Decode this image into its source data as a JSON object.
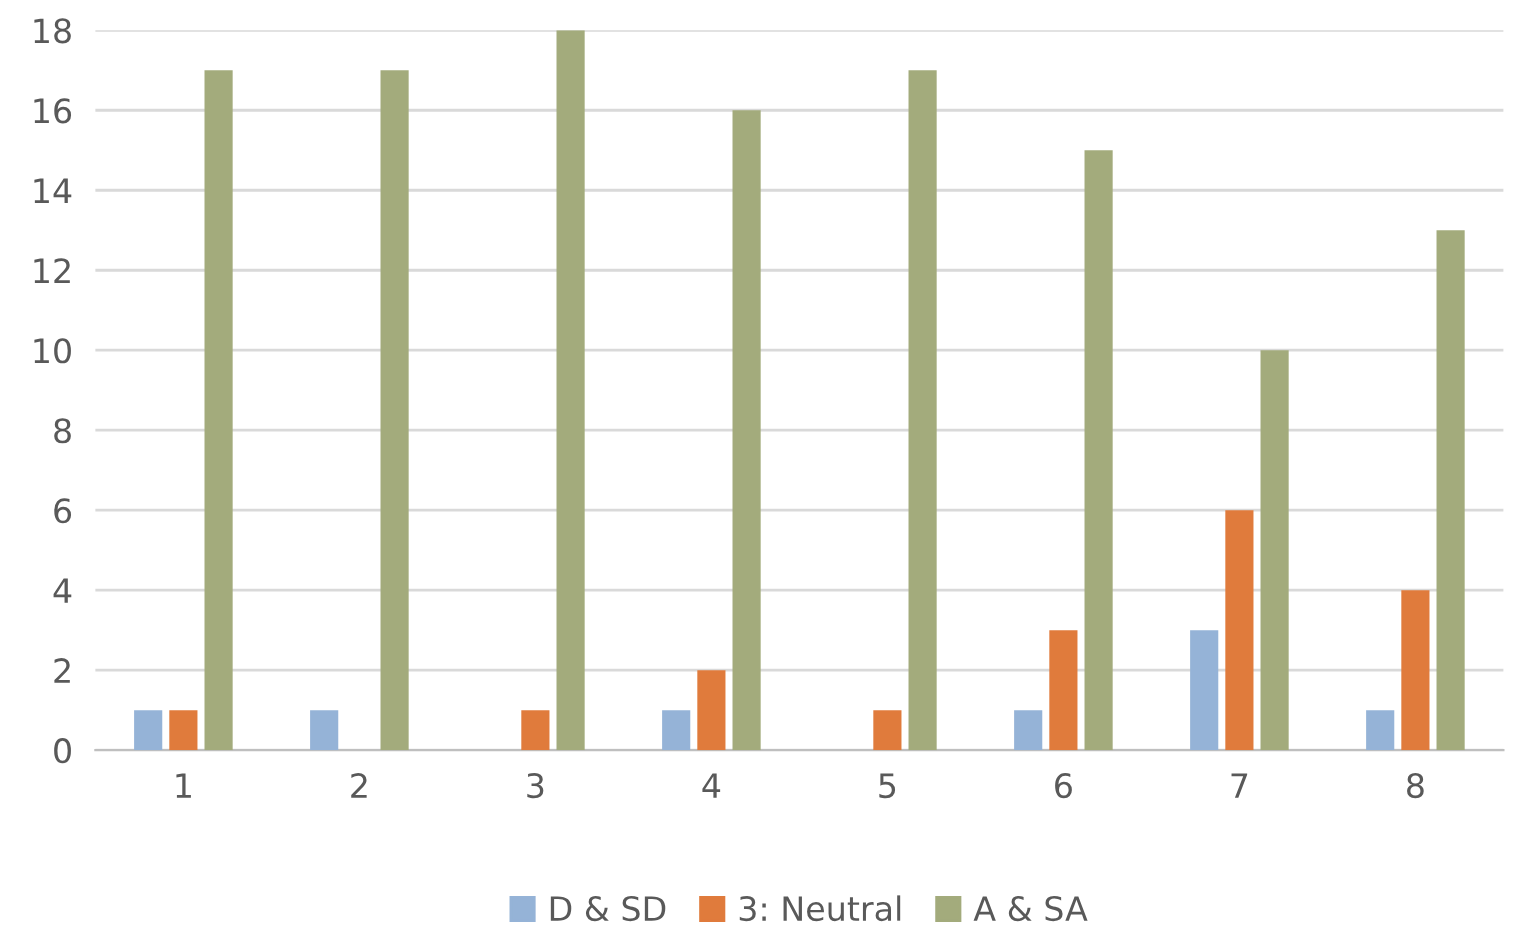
{
  "chart_data": {
    "type": "bar",
    "categories": [
      "1",
      "2",
      "3",
      "4",
      "5",
      "6",
      "7",
      "8"
    ],
    "series": [
      {
        "name": "D & SD",
        "color": "#95b3d7",
        "values": [
          1,
          1,
          0,
          1,
          0,
          1,
          3,
          1
        ]
      },
      {
        "name": "3: Neutral",
        "color": "#e07b3c",
        "values": [
          1,
          0,
          1,
          2,
          1,
          3,
          6,
          4
        ]
      },
      {
        "name": "A & SA",
        "color": "#a3ab7c",
        "values": [
          17,
          17,
          18,
          16,
          17,
          15,
          10,
          13
        ]
      }
    ],
    "ylim": [
      0,
      18
    ],
    "yticks": [
      0,
      2,
      4,
      6,
      8,
      10,
      12,
      14,
      16,
      18
    ],
    "grid": "y",
    "legend": "bottom"
  }
}
